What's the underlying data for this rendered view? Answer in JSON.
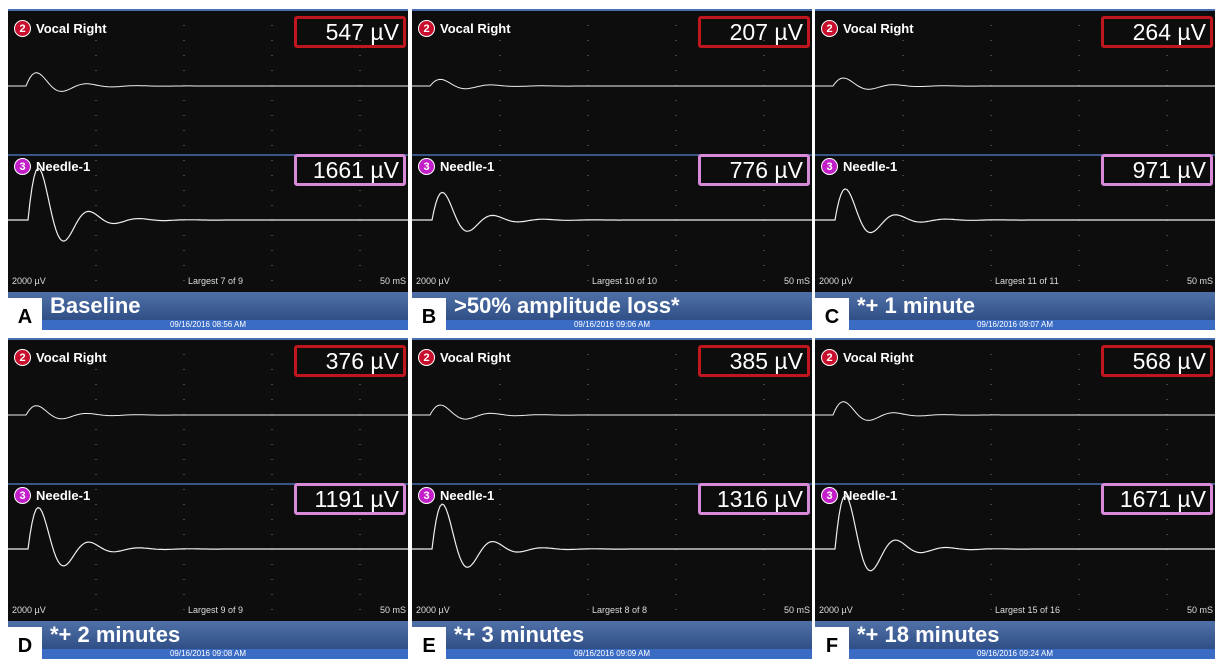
{
  "panels": [
    {
      "letter": "A",
      "caption": "Baseline",
      "timestamp": "09/16/2016 08:56 AM",
      "scale": "2000 µV",
      "largest": "Largest 7 of 9",
      "sweep": "50 mS",
      "channels": [
        {
          "number": "2",
          "name": "Vocal Right",
          "amplitude": "547 µV"
        },
        {
          "number": "3",
          "name": "Needle-1",
          "amplitude": "1661 µV"
        }
      ]
    },
    {
      "letter": "B",
      "caption": ">50% amplitude loss*",
      "timestamp": "09/16/2016 09:06 AM",
      "scale": "2000 µV",
      "largest": "Largest 10 of 10",
      "sweep": "50 mS",
      "channels": [
        {
          "number": "2",
          "name": "Vocal Right",
          "amplitude": "207 µV"
        },
        {
          "number": "3",
          "name": "Needle-1",
          "amplitude": "776 µV"
        }
      ]
    },
    {
      "letter": "C",
      "caption": "*+ 1 minute",
      "timestamp": "09/16/2016 09:07 AM",
      "scale": "2000 µV",
      "largest": "Largest 11 of 11",
      "sweep": "50 mS",
      "channels": [
        {
          "number": "2",
          "name": "Vocal Right",
          "amplitude": "264 µV"
        },
        {
          "number": "3",
          "name": "Needle-1",
          "amplitude": "971 µV"
        }
      ]
    },
    {
      "letter": "D",
      "caption": "*+ 2 minutes",
      "timestamp": "09/16/2016 09:08 AM",
      "scale": "2000 µV",
      "largest": "Largest 9 of 9",
      "sweep": "50 mS",
      "channels": [
        {
          "number": "2",
          "name": "Vocal Right",
          "amplitude": "376 µV"
        },
        {
          "number": "3",
          "name": "Needle-1",
          "amplitude": "1191 µV"
        }
      ]
    },
    {
      "letter": "E",
      "caption": "*+ 3 minutes",
      "timestamp": "09/16/2016 09:09 AM",
      "scale": "2000 µV",
      "largest": "Largest 8 of 8",
      "sweep": "50 mS",
      "channels": [
        {
          "number": "2",
          "name": "Vocal Right",
          "amplitude": "385 µV"
        },
        {
          "number": "3",
          "name": "Needle-1",
          "amplitude": "1316 µV"
        }
      ]
    },
    {
      "letter": "F",
      "caption": "*+ 18 minutes",
      "timestamp": "09/16/2016 09:24 AM",
      "scale": "2000 µV",
      "largest": "Largest 15 of 16",
      "sweep": "50 mS",
      "channels": [
        {
          "number": "2",
          "name": "Vocal Right",
          "amplitude": "568 µV"
        },
        {
          "number": "3",
          "name": "Needle-1",
          "amplitude": "1671 µV"
        }
      ]
    }
  ]
}
